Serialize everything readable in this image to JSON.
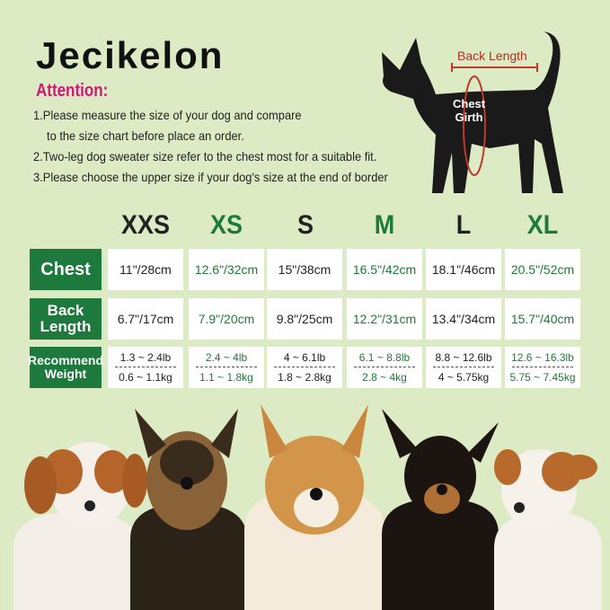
{
  "brand": "Jecikelon",
  "attention": {
    "title": "Attention:",
    "notes": [
      "1.Please measure the size of your dog and compare",
      "to the size chart before place an order.",
      "2.Two-leg dog sweater size refer to the chest most for a suitable fit.",
      "3.Please choose the upper size if your dog's size at the end of border"
    ]
  },
  "diagram": {
    "back_length": "Back Length",
    "chest_girth_1": "Chest",
    "chest_girth_2": "Girth"
  },
  "colors": {
    "green": "#1e7a3c",
    "pink": "#d0187a",
    "background": "#dcebc4",
    "measure_red": "#c0392b"
  },
  "sizes": [
    "XXS",
    "XS",
    "S",
    "M",
    "L",
    "XL"
  ],
  "rows": {
    "chest": {
      "label": "Chest",
      "values": [
        "11\"/28cm",
        "12.6\"/32cm",
        "15\"/38cm",
        "16.5\"/42cm",
        "18.1\"/46cm",
        "20.5\"/52cm"
      ]
    },
    "back": {
      "label1": "Back",
      "label2": "Length",
      "values": [
        "6.7\"/17cm",
        "7.9\"/20cm",
        "9.8\"/25cm",
        "12.2\"/31cm",
        "13.4\"/34cm",
        "15.7\"/40cm"
      ]
    },
    "weight": {
      "label1": "Recommend",
      "label2": "Weight",
      "lb": [
        "1.3 ~ 2.4lb",
        "2.4 ~ 4lb",
        "4 ~ 6.1lb",
        "6.1 ~ 8.8lb",
        "8.8 ~ 12.6lb",
        "12.6 ~ 16.3lb"
      ],
      "kg": [
        "0.6 ~ 1.1kg",
        "1.1 ~ 1.8kg",
        "1.8 ~ 2.8kg",
        "2.8 ~ 4kg",
        "4 ~ 5.75kg",
        "5.75 ~ 7.45kg"
      ]
    }
  }
}
